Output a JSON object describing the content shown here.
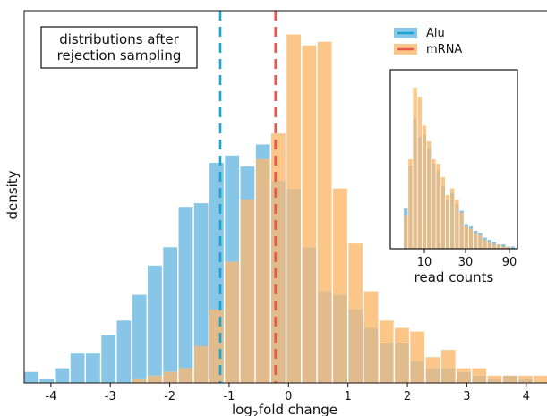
{
  "colors": {
    "alu": "#87c6e6",
    "mrna": "#fcc688",
    "alu_line": "#1ba3d6",
    "mrna_line": "#e8584a",
    "overlap": "#e0bb8c"
  },
  "chart_data": [
    {
      "type": "bar",
      "chart_kind": "overlaid histogram",
      "xlabel": "log",
      "xlabel_sub": "2",
      "xlabel_rest": "fold change",
      "ylabel": "density",
      "xlim": [
        -4.45,
        4.35
      ],
      "ylim": [
        0,
        1.0
      ],
      "y_ticks_shown": false,
      "x_ticks": [
        -4,
        -3,
        -2,
        -1,
        0,
        1,
        2,
        3,
        4
      ],
      "x_tick_labels": [
        "-4",
        "-3",
        "-2",
        "-1",
        "0",
        "1",
        "2",
        "3",
        "4"
      ],
      "bin_start": -4.45,
      "bin_width": 0.26,
      "annotation": [
        "distributions after",
        "rejection sampling"
      ],
      "legend": {
        "placement": "top-right",
        "entries": [
          {
            "label": "Alu",
            "color_key": "alu"
          },
          {
            "label": "mRNA",
            "color_key": "mrna"
          }
        ]
      },
      "vlines": [
        {
          "series": "Alu",
          "x": -1.15,
          "style": "dashed",
          "color_key": "alu_line"
        },
        {
          "series": "mRNA",
          "x": -0.22,
          "style": "dashed",
          "color_key": "mrna_line"
        }
      ],
      "series": [
        {
          "name": "Alu",
          "color_key": "alu",
          "values": [
            0.03,
            0.01,
            0.04,
            0.08,
            0.08,
            0.13,
            0.17,
            0.24,
            0.32,
            0.37,
            0.48,
            0.49,
            0.6,
            0.62,
            0.59,
            0.65,
            0.55,
            0.53,
            0.37,
            0.25,
            0.24,
            0.2,
            0.15,
            0.11,
            0.11,
            0.06,
            0.04,
            0.04,
            0.03,
            0.02,
            0.01,
            0.02,
            0.01,
            0.0
          ]
        },
        {
          "name": "mRNA",
          "color_key": "mrna",
          "values": [
            0.0,
            0.0,
            0.0,
            0.0,
            0.0,
            0.0,
            0.0,
            0.01,
            0.02,
            0.03,
            0.04,
            0.1,
            0.2,
            0.33,
            0.5,
            0.61,
            0.68,
            0.95,
            0.92,
            0.93,
            0.53,
            0.38,
            0.25,
            0.17,
            0.15,
            0.14,
            0.07,
            0.09,
            0.04,
            0.04,
            0.02,
            0.02,
            0.02,
            0.02
          ]
        }
      ]
    },
    {
      "type": "bar",
      "chart_kind": "inset histogram",
      "xlabel": "read counts",
      "x_tick_labels": [
        "10",
        "30",
        "90"
      ],
      "series": [
        {
          "name": "Alu",
          "color_key": "alu",
          "values": [
            0.18,
            0.37,
            0.58,
            0.5,
            0.51,
            0.45,
            0.38,
            0.35,
            0.28,
            0.22,
            0.25,
            0.2,
            0.17,
            0.11,
            0.1,
            0.08,
            0.07,
            0.05,
            0.04,
            0.03,
            0.02,
            0.02,
            0.01,
            0.01
          ]
        },
        {
          "name": "mRNA",
          "color_key": "mrna",
          "values": [
            0.15,
            0.4,
            0.72,
            0.68,
            0.55,
            0.48,
            0.4,
            0.38,
            0.32,
            0.24,
            0.27,
            0.22,
            0.16,
            0.1,
            0.09,
            0.07,
            0.06,
            0.04,
            0.03,
            0.02,
            0.02,
            0.01,
            0.01,
            0.0
          ]
        }
      ]
    }
  ]
}
